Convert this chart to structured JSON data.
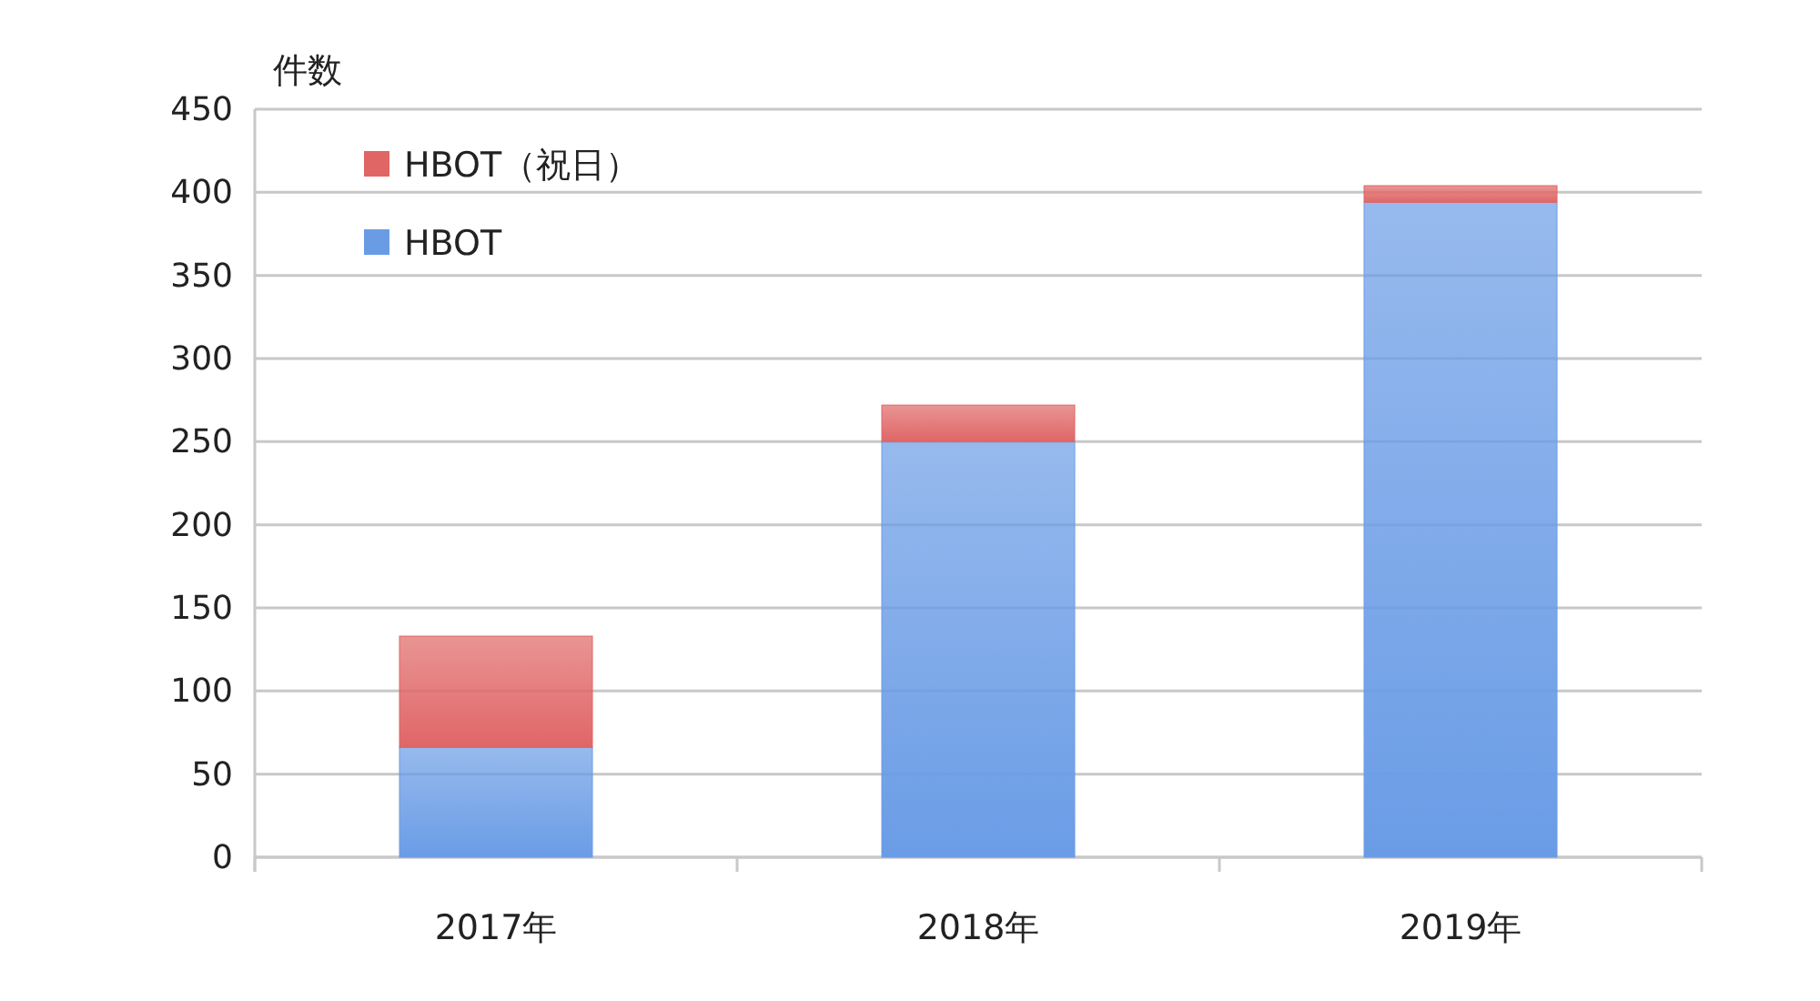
{
  "chart_data": {
    "type": "bar",
    "stacked": true,
    "ylabel": "件数",
    "categories": [
      "2017年",
      "2018年",
      "2019年"
    ],
    "series": [
      {
        "name": "HBOT",
        "color": "#6a9ce6",
        "values": [
          66,
          250,
          394
        ]
      },
      {
        "name": "HBOT（祝日）",
        "color": "#e06666",
        "values": [
          67,
          22,
          10
        ]
      }
    ],
    "ylim": [
      0,
      450
    ],
    "yticks": [
      0,
      50,
      100,
      150,
      200,
      250,
      300,
      350,
      400,
      450
    ],
    "grid": "y",
    "legend": "top left"
  }
}
